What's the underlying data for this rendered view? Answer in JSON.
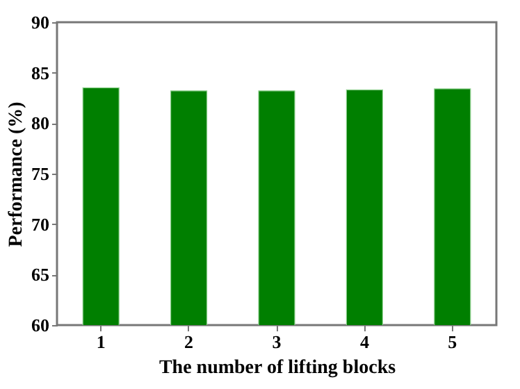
{
  "chart_data": {
    "type": "bar",
    "xlabel": "The number of lifting blocks",
    "ylabel": "Performance (%)",
    "categories": [
      "1",
      "2",
      "3",
      "4",
      "5"
    ],
    "values": [
      83.5,
      83.2,
      83.2,
      83.3,
      83.4
    ],
    "color": "#007f00",
    "ylim": [
      60,
      90
    ],
    "yticks": [
      60,
      65,
      70,
      75,
      80,
      85,
      90
    ],
    "grid": false
  }
}
